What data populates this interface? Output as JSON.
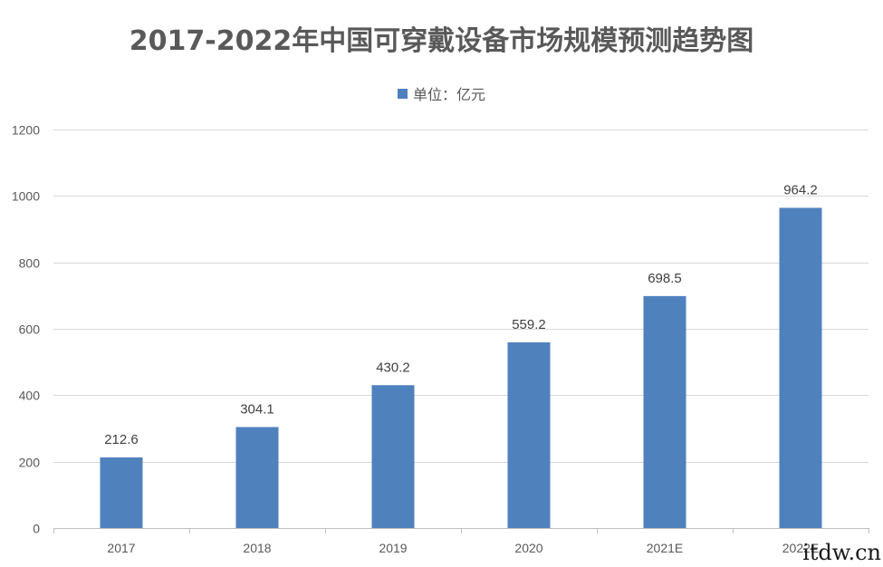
{
  "chart_data": {
    "type": "bar",
    "title": "2017-2022年中国可穿戴设备市场规模预测趋势图",
    "legend": {
      "label": "单位：亿元",
      "position": "top-center"
    },
    "categories": [
      "2017",
      "2018",
      "2019",
      "2020",
      "2021E",
      "2022E"
    ],
    "series": [
      {
        "name": "单位：亿元",
        "values": [
          212.6,
          304.1,
          430.2,
          559.2,
          698.5,
          964.2
        ]
      }
    ],
    "data_labels": [
      "212.6",
      "304.1",
      "430.2",
      "559.2",
      "698.5",
      "964.2"
    ],
    "y_ticks": [
      "0",
      "200",
      "400",
      "600",
      "800",
      "1000",
      "1200"
    ],
    "ylim": [
      0,
      1200
    ],
    "grid": true,
    "bar_color": "#4f81bd",
    "grid_color": "#d9d9d9"
  },
  "watermark": "itdw.cn"
}
